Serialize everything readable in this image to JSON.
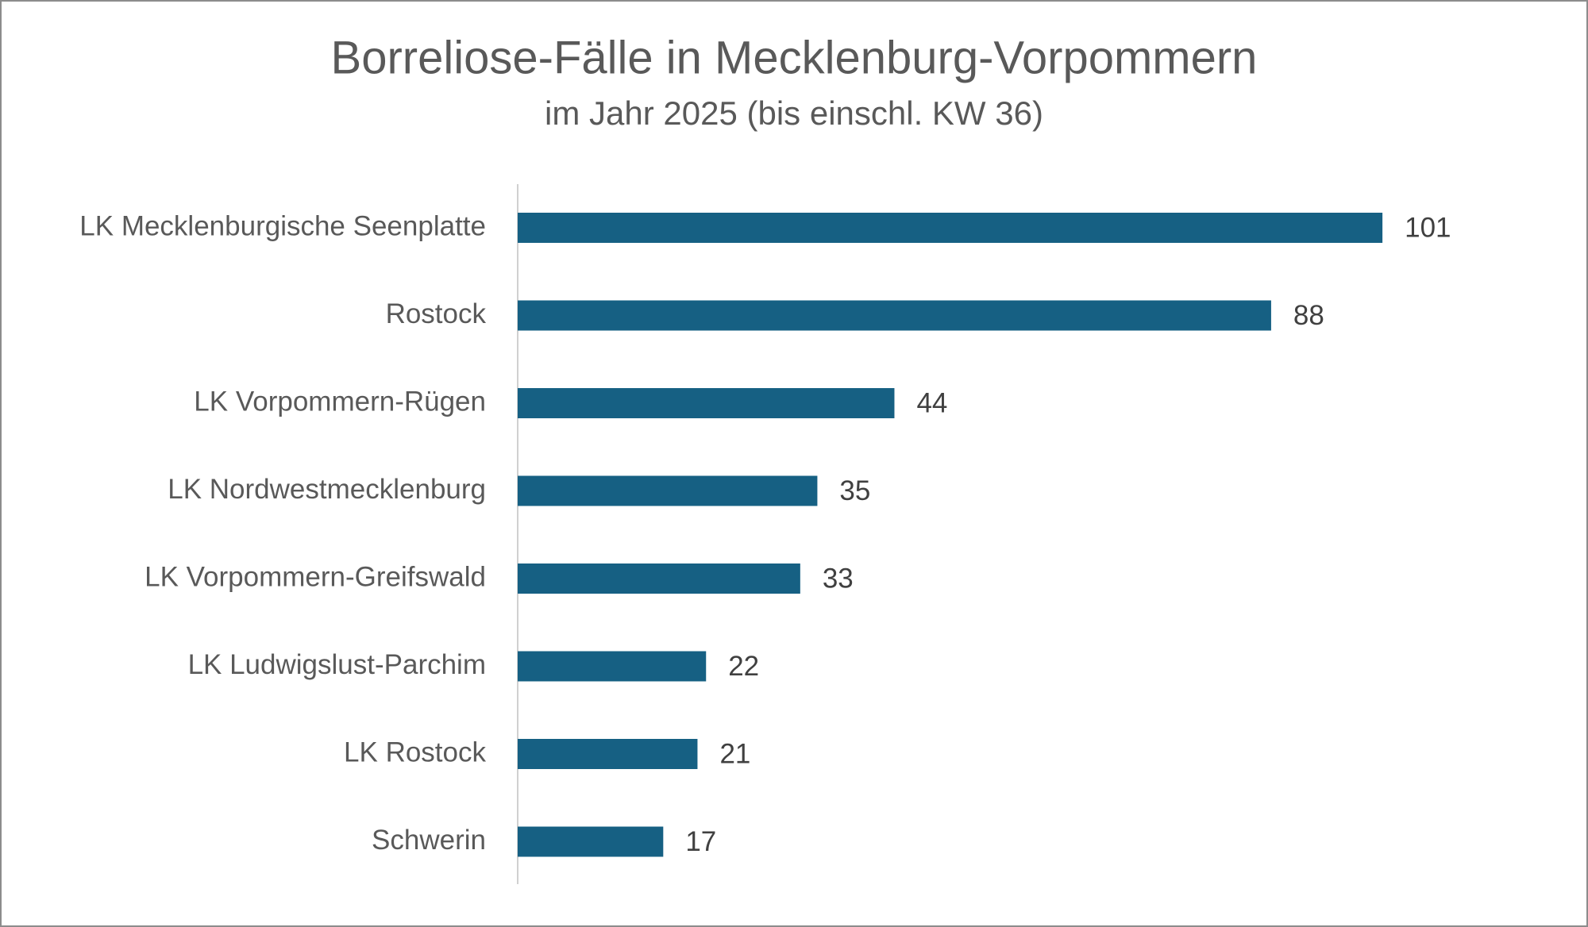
{
  "chart_data": {
    "type": "bar",
    "orientation": "horizontal",
    "title": "Borreliose-Fälle in Mecklenburg-Vorpommern",
    "subtitle": "im Jahr 2025 (bis einschl. KW 36)",
    "categories": [
      "LK Mecklenburgische Seenplatte",
      "Rostock",
      "LK Vorpommern-Rügen",
      "LK Nordwestmecklenburg",
      "LK Vorpommern-Greifswald",
      "LK Ludwigslust-Parchim",
      "LK Rostock",
      "Schwerin"
    ],
    "values": [
      101,
      88,
      44,
      35,
      33,
      22,
      21,
      17
    ],
    "color": "#166083",
    "xlim": [
      0,
      120
    ],
    "grid": false
  }
}
